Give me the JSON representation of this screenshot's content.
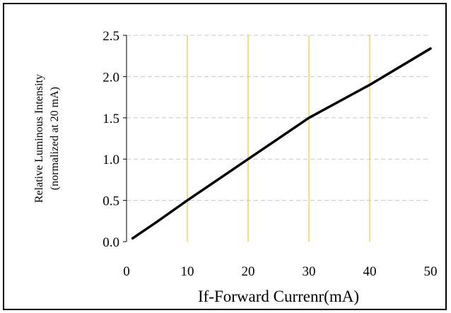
{
  "chart_data": {
    "type": "line",
    "title": "",
    "xlabel": "If-Forward Currenr(mA)",
    "ylabel_lines": [
      "Relative Luminous Intensity",
      "(normalized at 20 mA)"
    ],
    "xlim": [
      0,
      50
    ],
    "ylim": [
      0,
      2.5
    ],
    "x_ticks": [
      "0",
      "10",
      "20",
      "30",
      "40",
      "50"
    ],
    "y_ticks": [
      "0.0",
      "0.5",
      "1.0",
      "1.5",
      "2.0",
      "2.5"
    ],
    "x_tick_values": [
      0,
      10,
      20,
      30,
      40,
      50
    ],
    "y_tick_values": [
      0,
      0.5,
      1.0,
      1.5,
      2.0,
      2.5
    ],
    "grid": {
      "vertical": true,
      "horizontal": true
    },
    "series": [
      {
        "x": [
          1,
          5,
          10,
          20,
          30,
          40,
          50
        ],
        "y": [
          0.04,
          0.24,
          0.5,
          1.0,
          1.5,
          1.9,
          2.34
        ],
        "color": "#000000"
      }
    ],
    "colors": {
      "vgrid": "#e8c000",
      "hgrid": "#c8c8c8",
      "line": "#000000"
    }
  }
}
